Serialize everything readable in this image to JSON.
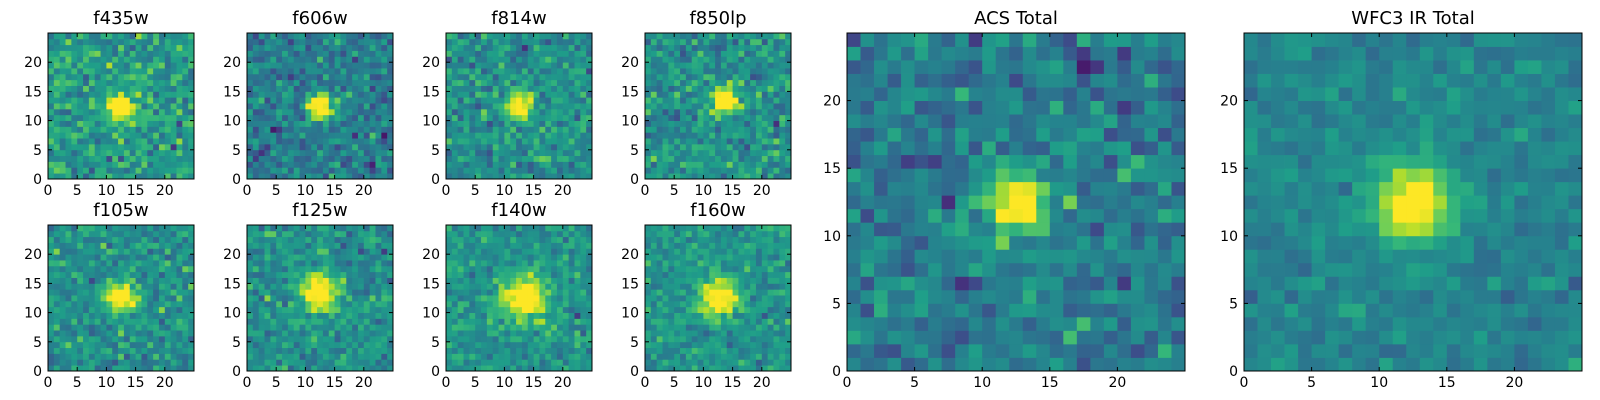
{
  "figure": {
    "colormap": "viridis",
    "background": "#ffffff",
    "frame_color": "#000000"
  },
  "chart_data": [
    {
      "type": "heatmap",
      "title": "f435w",
      "grid": [
        25,
        25
      ],
      "peak": [
        12,
        12
      ],
      "noise": 0.62,
      "signal": 0.75,
      "sigma": 1.6,
      "baseline": 0.55,
      "xticks": [
        0,
        5,
        10,
        15,
        20
      ],
      "yticks": [
        0,
        5,
        10,
        15,
        20
      ],
      "xlim": [
        0,
        25
      ],
      "ylim": [
        0,
        25
      ]
    },
    {
      "type": "heatmap",
      "title": "f606w",
      "grid": [
        25,
        25
      ],
      "peak": [
        12,
        12
      ],
      "noise": 0.6,
      "signal": 0.8,
      "sigma": 1.6,
      "baseline": 0.42,
      "xticks": [
        0,
        5,
        10,
        15,
        20
      ],
      "yticks": [
        0,
        5,
        10,
        15,
        20
      ],
      "xlim": [
        0,
        25
      ],
      "ylim": [
        0,
        25
      ]
    },
    {
      "type": "heatmap",
      "title": "f814w",
      "grid": [
        25,
        25
      ],
      "peak": [
        12,
        12
      ],
      "noise": 0.6,
      "signal": 0.75,
      "sigma": 1.6,
      "baseline": 0.5,
      "xticks": [
        0,
        5,
        10,
        15,
        20
      ],
      "yticks": [
        0,
        5,
        10,
        15,
        20
      ],
      "xlim": [
        0,
        25
      ],
      "ylim": [
        0,
        25
      ]
    },
    {
      "type": "heatmap",
      "title": "f850lp",
      "grid": [
        25,
        25
      ],
      "peak": [
        13,
        13
      ],
      "noise": 0.6,
      "signal": 0.75,
      "sigma": 1.6,
      "baseline": 0.5,
      "xticks": [
        0,
        5,
        10,
        15,
        20
      ],
      "yticks": [
        0,
        5,
        10,
        15,
        20
      ],
      "xlim": [
        0,
        25
      ],
      "ylim": [
        0,
        25
      ]
    },
    {
      "type": "heatmap",
      "title": "f105w",
      "grid": [
        25,
        25
      ],
      "peak": [
        12,
        12
      ],
      "noise": 0.55,
      "signal": 0.7,
      "sigma": 1.8,
      "baseline": 0.5,
      "xticks": [
        0,
        5,
        10,
        15,
        20
      ],
      "yticks": [
        0,
        5,
        10,
        15,
        20
      ],
      "xlim": [
        0,
        25
      ],
      "ylim": [
        0,
        25
      ]
    },
    {
      "type": "heatmap",
      "title": "f125w",
      "grid": [
        25,
        25
      ],
      "peak": [
        12,
        13
      ],
      "noise": 0.5,
      "signal": 0.7,
      "sigma": 2.2,
      "baseline": 0.5,
      "xticks": [
        0,
        5,
        10,
        15,
        20
      ],
      "yticks": [
        0,
        5,
        10,
        15,
        20
      ],
      "xlim": [
        0,
        25
      ],
      "ylim": [
        0,
        25
      ]
    },
    {
      "type": "heatmap",
      "title": "f140w",
      "grid": [
        25,
        25
      ],
      "peak": [
        13,
        12
      ],
      "noise": 0.45,
      "signal": 0.65,
      "sigma": 2.6,
      "baseline": 0.52,
      "xticks": [
        0,
        5,
        10,
        15,
        20
      ],
      "yticks": [
        0,
        5,
        10,
        15,
        20
      ],
      "xlim": [
        0,
        25
      ],
      "ylim": [
        0,
        25
      ]
    },
    {
      "type": "heatmap",
      "title": "f160w",
      "grid": [
        25,
        25
      ],
      "peak": [
        12,
        12
      ],
      "noise": 0.45,
      "signal": 0.65,
      "sigma": 2.2,
      "baseline": 0.52,
      "xticks": [
        0,
        5,
        10,
        15,
        20
      ],
      "yticks": [
        0,
        5,
        10,
        15,
        20
      ],
      "xlim": [
        0,
        25
      ],
      "ylim": [
        0,
        25
      ]
    },
    {
      "type": "heatmap",
      "title": "ACS Total",
      "grid": [
        25,
        25
      ],
      "peak": [
        12,
        12
      ],
      "noise": 0.55,
      "signal": 0.85,
      "sigma": 1.5,
      "baseline": 0.42,
      "xticks": [
        0,
        5,
        10,
        15,
        20
      ],
      "yticks": [
        0,
        5,
        10,
        15,
        20
      ],
      "xlim": [
        0,
        25
      ],
      "ylim": [
        0,
        25
      ]
    },
    {
      "type": "heatmap",
      "title": "WFC3 IR Total",
      "grid": [
        25,
        25
      ],
      "peak": [
        12,
        12
      ],
      "noise": 0.3,
      "signal": 0.7,
      "sigma": 2.0,
      "baseline": 0.45,
      "xticks": [
        0,
        5,
        10,
        15,
        20
      ],
      "yticks": [
        0,
        5,
        10,
        15,
        20
      ],
      "xlim": [
        0,
        25
      ],
      "ylim": [
        0,
        25
      ]
    }
  ]
}
